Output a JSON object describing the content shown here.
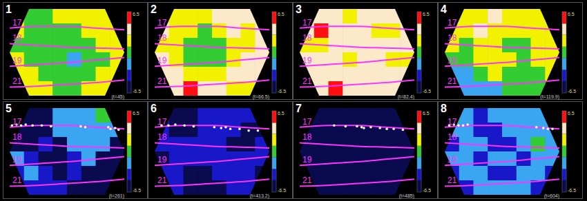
{
  "chart_data": {
    "type": "heatmap",
    "xlim": [
      0,
      100
    ],
    "ylim": [
      0,
      100
    ],
    "tick_labels": false,
    "colorbar": {
      "range": [
        -6.5,
        6.5
      ],
      "ticks": [
        6.5,
        -6.5
      ],
      "levels": [
        -6.5,
        -4.6,
        -2.8,
        -0.9,
        0.9,
        2.8,
        4.6,
        6.5
      ],
      "colors": [
        "#0a0a4e",
        "#1818c8",
        "#3aa6f2",
        "#33cc33",
        "#f2f200",
        "#fbe9c9",
        "#ff1010"
      ]
    },
    "line_x": [
      0,
      25,
      50,
      75,
      100
    ],
    "lines": [
      {
        "name": "17",
        "color": "#ff33ff",
        "y": [
          78,
          80,
          80,
          78,
          76
        ]
      },
      {
        "name": "18",
        "color": "#ff33ff",
        "y": [
          60,
          58,
          56,
          55,
          54
        ]
      },
      {
        "name": "19",
        "color": "#ff33ff",
        "y": [
          34,
          36,
          38,
          41,
          44
        ]
      },
      {
        "name": "21",
        "color": "#ff33ff",
        "y": [
          10,
          11,
          13,
          15,
          18
        ]
      }
    ],
    "panels": [
      {
        "label": "1",
        "time": "(t=45)",
        "cells": [
          [
            2,
            0,
            0,
            2,
            2,
            2,
            2,
            2
          ],
          [
            2,
            0,
            0,
            0,
            0,
            2,
            2,
            2
          ],
          [
            0,
            0,
            0,
            0,
            0,
            0,
            2,
            2
          ],
          [
            2,
            0,
            0,
            0,
            -2,
            0,
            0,
            2
          ],
          [
            2,
            2,
            0,
            0,
            0,
            0,
            2,
            2
          ],
          [
            2,
            2,
            2,
            0,
            0,
            2,
            2,
            2
          ]
        ]
      },
      {
        "label": "2",
        "time": "(t=66.5)",
        "cells": [
          [
            3.5,
            2,
            2,
            2,
            3.5,
            3.5,
            3.5,
            3.5
          ],
          [
            3.5,
            2,
            2,
            0,
            2,
            3.5,
            2,
            3.5
          ],
          [
            2,
            2,
            0,
            0,
            0,
            2,
            2,
            3.5
          ],
          [
            3.5,
            2,
            0,
            0,
            0,
            2,
            3.5,
            3.5
          ],
          [
            3.5,
            3.5,
            2,
            2,
            2,
            3.5,
            3.5,
            3.5
          ],
          [
            2,
            3.5,
            5.5,
            3.5,
            3.5,
            2,
            2,
            3.5
          ]
        ]
      },
      {
        "label": "3",
        "time": "(t=82.4)",
        "cells": [
          [
            3.5,
            3.5,
            3.5,
            2,
            3.5,
            3.5,
            3.5,
            3.5
          ],
          [
            3.5,
            5.5,
            3.5,
            3.5,
            3.5,
            2,
            2,
            3.5
          ],
          [
            2,
            2,
            3.5,
            3.5,
            3.5,
            3.5,
            3.5,
            3.5
          ],
          [
            3.5,
            3.5,
            3.5,
            2,
            3.5,
            3.5,
            2,
            2
          ],
          [
            3.5,
            3.5,
            3.5,
            3.5,
            3.5,
            3.5,
            3.5,
            3.5
          ],
          [
            3.5,
            3.5,
            5.5,
            3.5,
            3.5,
            3.5,
            3.5,
            3.5
          ]
        ]
      },
      {
        "label": "4",
        "time": "(t=119.9)",
        "cells": [
          [
            3.5,
            2,
            2,
            3.5,
            2,
            2,
            2,
            3.5
          ],
          [
            2,
            2,
            3.5,
            2,
            2,
            2,
            2,
            2
          ],
          [
            2,
            0,
            2,
            2,
            0,
            0,
            2,
            2
          ],
          [
            0,
            0,
            2,
            2,
            2,
            0,
            2,
            2
          ],
          [
            -2,
            -2,
            0,
            2,
            0,
            0,
            0,
            2
          ],
          [
            -2,
            -2,
            -2,
            -2,
            0,
            0,
            0,
            0
          ]
        ]
      },
      {
        "label": "5",
        "time": "(t=261)",
        "cells": [
          [
            -5.5,
            -5.5,
            -5.5,
            -2,
            -2,
            -2,
            0,
            -2
          ],
          [
            -5.5,
            -5.5,
            -5.5,
            -2,
            -2,
            -2,
            -2,
            -2
          ],
          [
            -5.5,
            -5.5,
            -3.5,
            -5.5,
            -2,
            -2,
            -2,
            -5.5
          ],
          [
            -2,
            -3.5,
            -5.5,
            -5.5,
            -3.5,
            -2,
            -5.5,
            -5.5
          ],
          [
            -3.5,
            -2,
            -3.5,
            -5.5,
            -3.5,
            -5.5,
            -5.5,
            -5.5
          ],
          [
            -3.5,
            -3.5,
            -3.5,
            -3.5,
            -5.5,
            -5.5,
            -5.5,
            -5.5
          ]
        ],
        "points": [
          [
            2,
            80
          ],
          [
            6,
            81
          ],
          [
            10,
            80
          ],
          [
            14,
            81
          ],
          [
            20,
            80
          ],
          [
            28,
            80
          ],
          [
            36,
            79
          ],
          [
            62,
            79
          ],
          [
            66,
            78
          ],
          [
            86,
            78
          ],
          [
            88,
            76
          ],
          [
            92,
            77
          ],
          [
            95,
            75
          ]
        ]
      },
      {
        "label": "6",
        "time": "(t=413.2)",
        "cells": [
          [
            -3.5,
            -5.5,
            -5.5,
            -3.5,
            -3.5,
            -3.5,
            -3.5,
            -3.5
          ],
          [
            -3.5,
            -5.5,
            -5.5,
            -3.5,
            -3.5,
            -3.5,
            -5.5,
            -5.5
          ],
          [
            -3.5,
            -3.5,
            -3.5,
            -3.5,
            -3.5,
            -5.5,
            -5.5,
            -3.5
          ],
          [
            -5.5,
            -3.5,
            -3.5,
            -3.5,
            -3.5,
            -3.5,
            -3.5,
            -3.5
          ],
          [
            -3.5,
            -3.5,
            -5.5,
            -5.5,
            -3.5,
            -3.5,
            -3.5,
            -5.5
          ],
          [
            -3.5,
            -3.5,
            -5.5,
            -5.5,
            -5.5,
            -3.5,
            -3.5,
            -5.5
          ]
        ],
        "points": [
          [
            6,
            80
          ],
          [
            12,
            80
          ],
          [
            18,
            81
          ],
          [
            26,
            80
          ],
          [
            34,
            79
          ],
          [
            52,
            78
          ],
          [
            58,
            77
          ],
          [
            62,
            78
          ],
          [
            66,
            76
          ],
          [
            74,
            76
          ],
          [
            82,
            74
          ],
          [
            90,
            74
          ]
        ]
      },
      {
        "label": "7",
        "time": "(t=485)",
        "cells": [
          [
            -5.5,
            -5.5,
            -5.5,
            -5.5,
            -5.5,
            -5.5,
            -5.5,
            -5.5
          ],
          [
            -5.5,
            -5.5,
            -5.5,
            -5.5,
            -5.5,
            -5.5,
            -5.5,
            -5.5
          ],
          [
            -5.5,
            -5.5,
            -5.5,
            -5.5,
            -5.5,
            -5.5,
            -5.5,
            -5.5
          ],
          [
            -5.5,
            -5.5,
            -5.5,
            -5.5,
            -5.5,
            -5.5,
            -5.5,
            -5.5
          ],
          [
            -5.5,
            -5.5,
            -5.5,
            -5.5,
            -5.5,
            -5.5,
            -5.5,
            -5.5
          ],
          [
            -5.5,
            -5.5,
            -5.5,
            -5.5,
            -5.5,
            -5.5,
            -5.5,
            -5.5
          ]
        ],
        "points": [
          [
            30,
            80
          ],
          [
            40,
            79
          ],
          [
            50,
            79
          ],
          [
            54,
            78
          ],
          [
            56,
            77
          ],
          [
            62,
            78
          ],
          [
            70,
            77
          ],
          [
            76,
            76
          ],
          [
            82,
            76
          ],
          [
            90,
            75
          ]
        ]
      },
      {
        "label": "8",
        "time": "(t=604)",
        "cells": [
          [
            0,
            -2,
            -3.5,
            -2,
            -2,
            -2,
            -2,
            -2
          ],
          [
            -2,
            -2,
            -3.5,
            -3.5,
            -2,
            -2,
            -2,
            -2
          ],
          [
            -3.5,
            -2,
            -2,
            -3.5,
            -3.5,
            -2,
            0,
            -2
          ],
          [
            -2,
            -2,
            -3.5,
            -2,
            -2,
            -3.5,
            -2,
            -2
          ],
          [
            -3.5,
            -2,
            -2,
            -3.5,
            -3.5,
            -2,
            -2,
            -3.5
          ],
          [
            -3.5,
            -3.5,
            -2,
            -2,
            -2,
            -2,
            -3.5,
            -3.5
          ]
        ],
        "points": [
          [
            4,
            80
          ],
          [
            8,
            81
          ],
          [
            12,
            80
          ],
          [
            16,
            80
          ],
          [
            20,
            81
          ],
          [
            80,
            78
          ],
          [
            86,
            77
          ],
          [
            90,
            76
          ],
          [
            94,
            76
          ]
        ]
      }
    ]
  }
}
